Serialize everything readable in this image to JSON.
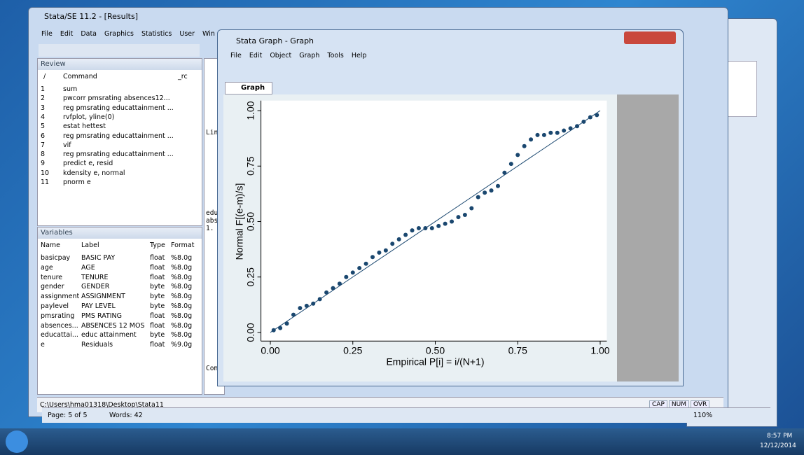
{
  "main_window": {
    "title": "Stata/SE 11.2 - [Results]",
    "menu": [
      "File",
      "Edit",
      "Data",
      "Graphics",
      "Statistics",
      "User",
      "Win"
    ],
    "review": {
      "header": "Review",
      "columns": [
        "/",
        "Command",
        "_rc"
      ],
      "rows": [
        [
          "1",
          "sum"
        ],
        [
          "2",
          "pwcorr pmsrating absences12..."
        ],
        [
          "3",
          "reg pmsrating educattainment ..."
        ],
        [
          "4",
          "rvfplot, yline(0)"
        ],
        [
          "5",
          "estat hettest"
        ],
        [
          "6",
          "reg pmsrating educattainment ..."
        ],
        [
          "7",
          "vif"
        ],
        [
          "8",
          "reg pmsrating educattainment ..."
        ],
        [
          "9",
          "predict e, resid"
        ],
        [
          "10",
          "kdensity e, normal"
        ],
        [
          "11",
          "pnorm e"
        ]
      ]
    },
    "variables": {
      "header": "Variables",
      "columns": [
        "Name",
        "Label",
        "Type",
        "Format"
      ],
      "rows": [
        [
          "basicpay",
          "BASIC PAY",
          "float",
          "%8.0g"
        ],
        [
          "age",
          "AGE",
          "float",
          "%8.0g"
        ],
        [
          "tenure",
          "TENURE",
          "float",
          "%8.0g"
        ],
        [
          "gender",
          "GENDER",
          "byte",
          "%8.0g"
        ],
        [
          "assignment",
          "ASSIGNMENT",
          "byte",
          "%8.0g"
        ],
        [
          "paylevel",
          "PAY LEVEL",
          "byte",
          "%8.0g"
        ],
        [
          "pmsrating",
          "PMS RATING",
          "float",
          "%8.0g"
        ],
        [
          "absences...",
          "ABSENCES 12 MOS",
          "float",
          "%8.0g"
        ],
        [
          "educattai...",
          "educ attainment",
          "byte",
          "%8.0g"
        ],
        [
          "e",
          "Residuals",
          "float",
          "%9.0g"
        ]
      ]
    },
    "results_fragments": [
      "Lin",
      "edu",
      "abs",
      "1.",
      "Com"
    ],
    "status_path": "C:\\Users\\hma01318\\Desktop\\Stata11",
    "status_flags": [
      "CAP",
      "NUM",
      "OVR"
    ]
  },
  "graph_window": {
    "title": "Stata Graph - Graph",
    "menu": [
      "File",
      "Edit",
      "Object",
      "Graph",
      "Tools",
      "Help"
    ],
    "tab": "Graph"
  },
  "chart_data": {
    "type": "scatter",
    "x_label": "Empirical P[i] = i/(N+1)",
    "y_label": "Normal F[(e-m)/s]",
    "x": [
      0.01,
      0.03,
      0.05,
      0.07,
      0.09,
      0.11,
      0.13,
      0.15,
      0.17,
      0.19,
      0.21,
      0.23,
      0.25,
      0.27,
      0.29,
      0.31,
      0.33,
      0.35,
      0.37,
      0.39,
      0.41,
      0.43,
      0.45,
      0.47,
      0.49,
      0.51,
      0.53,
      0.55,
      0.57,
      0.59,
      0.61,
      0.63,
      0.65,
      0.67,
      0.69,
      0.71,
      0.73,
      0.75,
      0.77,
      0.79,
      0.81,
      0.83,
      0.85,
      0.87,
      0.89,
      0.91,
      0.93,
      0.95,
      0.97,
      0.99
    ],
    "values": [
      0.01,
      0.02,
      0.04,
      0.08,
      0.11,
      0.12,
      0.13,
      0.15,
      0.18,
      0.2,
      0.22,
      0.25,
      0.27,
      0.29,
      0.31,
      0.34,
      0.36,
      0.37,
      0.4,
      0.42,
      0.44,
      0.46,
      0.47,
      0.47,
      0.47,
      0.48,
      0.49,
      0.5,
      0.52,
      0.53,
      0.56,
      0.61,
      0.63,
      0.64,
      0.66,
      0.72,
      0.76,
      0.8,
      0.84,
      0.87,
      0.89,
      0.89,
      0.9,
      0.9,
      0.91,
      0.92,
      0.93,
      0.95,
      0.97,
      0.98
    ],
    "color": "#1a476f",
    "reference_line": {
      "x": [
        0,
        1
      ],
      "y": [
        0,
        1
      ],
      "color": "#1a476f"
    },
    "xlim": [
      -0.02,
      1.02
    ],
    "ylim": [
      -0.02,
      1.02
    ],
    "xticks": [
      {
        "value": 0,
        "label": "0.00"
      },
      {
        "value": 0.25,
        "label": "0.25"
      },
      {
        "value": 0.5,
        "label": "0.50"
      },
      {
        "value": 0.75,
        "label": "0.75"
      },
      {
        "value": 1,
        "label": "1.00"
      }
    ],
    "yticks": [
      {
        "value": 0,
        "label": "0.00"
      },
      {
        "value": 0.25,
        "label": "0.25"
      },
      {
        "value": 0.5,
        "label": "0.50"
      },
      {
        "value": 0.75,
        "label": "0.75"
      },
      {
        "value": 1,
        "label": "1.00"
      }
    ]
  },
  "word_status": {
    "page": "Page: 5 of 5",
    "words": "Words: 42",
    "zoom": "110%"
  },
  "clock": {
    "time": "8:57 PM",
    "date": "12/12/2014"
  }
}
